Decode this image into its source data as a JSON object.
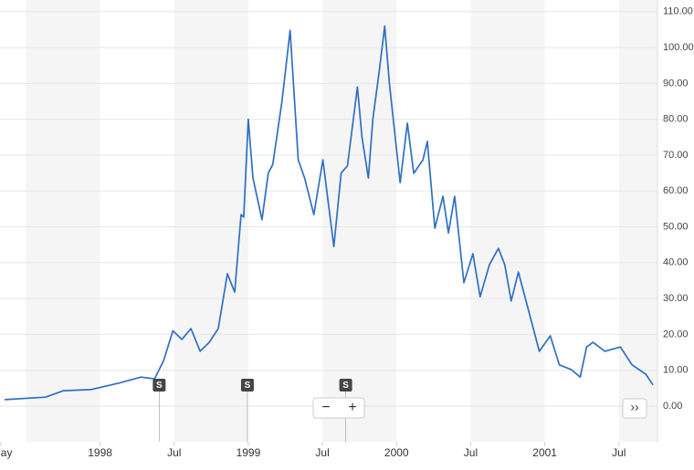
{
  "chart_data": {
    "type": "line",
    "x": [
      1997.356,
      1997.632,
      1997.754,
      1997.938,
      1998.123,
      1998.276,
      1998.368,
      1998.429,
      1998.491,
      1998.552,
      1998.613,
      1998.675,
      1998.736,
      1998.797,
      1998.859,
      1998.908,
      1998.951,
      1998.969,
      1999.0,
      1999.031,
      1999.092,
      1999.135,
      1999.165,
      1999.227,
      1999.282,
      1999.337,
      1999.38,
      1999.442,
      1999.503,
      1999.534,
      1999.577,
      1999.626,
      1999.669,
      1999.736,
      1999.767,
      1999.81,
      1999.84,
      1999.883,
      1999.92,
      1999.951,
      2000.024,
      2000.073,
      2000.116,
      2000.178,
      2000.208,
      2000.258,
      2000.313,
      2000.35,
      2000.392,
      2000.454,
      2000.515,
      2000.564,
      2000.626,
      2000.687,
      2000.73,
      2000.773,
      2000.822,
      2000.914,
      2000.963,
      2001.037,
      2001.098,
      2001.178,
      2001.239,
      2001.282,
      2001.325,
      2001.405,
      2001.509,
      2001.589,
      2001.681,
      2001.73
    ],
    "series": [
      {
        "color": "#2f6fc4",
        "values": [
          1.8,
          2.5,
          4.3,
          4.6,
          6.4,
          8.1,
          7.6,
          12.7,
          21,
          18.6,
          21.6,
          15.3,
          17.8,
          21.6,
          36.9,
          31.8,
          53.4,
          52.7,
          80,
          63.6,
          52,
          65,
          67.4,
          85,
          104.8,
          68.7,
          63.6,
          53.4,
          68.7,
          58.5,
          44.5,
          65,
          67,
          89,
          75,
          63.6,
          80,
          93.4,
          106,
          90.3,
          62.3,
          78.9,
          64.9,
          68.7,
          73.8,
          49.6,
          58.5,
          48.3,
          58.5,
          34.4,
          42.5,
          30.5,
          39.4,
          44,
          39.4,
          29.3,
          37.4,
          22.9,
          15.3,
          19.6,
          11.5,
          10.2,
          8.1,
          16.5,
          17.8,
          15.3,
          16.5,
          11.5,
          8.9,
          5.9
        ]
      }
    ],
    "xlim": [
      1997.325,
      2001.76
    ],
    "xticks": [
      {
        "value": 1997.33,
        "label": "ay"
      },
      1998,
      {
        "value": 1998.5,
        "label": "Jul"
      },
      1999,
      {
        "value": 1999.5,
        "label": "Jul"
      },
      2000,
      {
        "value": 2000.5,
        "label": "Jul"
      },
      2001,
      {
        "value": 2001.5,
        "label": "Jul"
      }
    ],
    "ylim": [
      -10,
      113
    ],
    "yticks": [
      {
        "value": 0,
        "label": "0.00"
      },
      {
        "value": 10,
        "label": "10.00"
      },
      {
        "value": 20,
        "label": "20.00"
      },
      {
        "value": 30,
        "label": "30.00"
      },
      {
        "value": 40,
        "label": "40.00"
      },
      {
        "value": 50,
        "label": "50.00"
      },
      {
        "value": 60,
        "label": "60.00"
      },
      {
        "value": 70,
        "label": "70.00"
      },
      {
        "value": 80,
        "label": "80.00"
      },
      {
        "value": 90,
        "label": "90.00"
      },
      {
        "value": 100,
        "label": "100.00"
      },
      {
        "value": 110,
        "label": "110.00"
      }
    ],
    "grid": true,
    "annotations": [
      {
        "x": 1998.399,
        "label": "S"
      },
      {
        "x": 1998.994,
        "label": "S"
      },
      {
        "x": 1999.657,
        "label": "S"
      }
    ]
  },
  "controls": {
    "zoom_out": "−",
    "zoom_in": "+",
    "scroll": "››"
  }
}
